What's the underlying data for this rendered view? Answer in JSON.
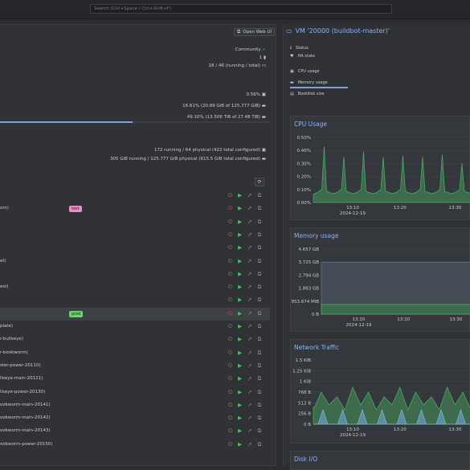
{
  "search": {
    "placeholder": "Search (Ctrl+Space / Ctrl+Shift+F)"
  },
  "left": {
    "open_web_ui": "Open Web UI",
    "subscription": "Community",
    "nodes": "1",
    "guests": "18 / 46 (running / total)",
    "cpu": "0.56%",
    "memory": "16.61% (20.89 GiB of 125.777 GiB)",
    "storage": "49.10% (13.506 TiB of 27.48 TiB)",
    "cpu_alloc": "172 running / 64 physical (422 total configured)",
    "mem_alloc": "305 GiB running / 125.777 GiB physical (615.5 GiB total configured)",
    "storage_pct": 0.491,
    "rows": [
      {
        "name": "",
        "tag": "",
        "status": "stopped"
      },
      {
        "name": "om)",
        "tag": "test",
        "status": "red"
      },
      {
        "name": "",
        "tag": "",
        "status": "stopped"
      },
      {
        "name": "",
        "tag": "",
        "status": "stopped"
      },
      {
        "name": "",
        "tag": "",
        "status": "stopped"
      },
      {
        "name": "et)",
        "tag": "",
        "status": "stopped"
      },
      {
        "name": "",
        "tag": "",
        "status": "stopped"
      },
      {
        "name": "est)",
        "tag": "",
        "status": "stopped"
      },
      {
        "name": "",
        "tag": "",
        "status": "stopped"
      },
      {
        "name": "",
        "tag": "prod",
        "status": "red"
      },
      {
        "name": "plate)",
        "tag": "",
        "status": "stopped"
      },
      {
        "name": "r-bullseye)",
        "tag": "",
        "status": "stopped"
      },
      {
        "name": "r-bookworm)",
        "tag": "",
        "status": "stopped"
      },
      {
        "name": "ster-power-20110)",
        "tag": "",
        "status": "stopped"
      },
      {
        "name": "llseye-main-20121)",
        "tag": "",
        "status": "stopped"
      },
      {
        "name": "llseye-power-20130)",
        "tag": "",
        "status": "stopped"
      },
      {
        "name": "ookworm-main-20141)",
        "tag": "",
        "status": "stopped"
      },
      {
        "name": "ookworm-main-20142)",
        "tag": "",
        "status": "stopped"
      },
      {
        "name": "ookworm-main-20143)",
        "tag": "",
        "status": "stopped"
      },
      {
        "name": "ookworm-power-20150)",
        "tag": "",
        "status": "stopped"
      }
    ]
  },
  "right": {
    "vm_title": "VM '20000 (buildbot-master)'",
    "info": [
      "Status",
      "HA state",
      "CPU usage",
      "Memory usage",
      "Bootdisk size"
    ],
    "cpu_card": {
      "title": "CPU Usage",
      "yticks": [
        "0.50%",
        "0.40%",
        "0.30%",
        "0.20%",
        "0.10%",
        "0.00%"
      ],
      "xticks": [
        "13:10",
        "13:20",
        "13:30"
      ],
      "date": "2024-12-19"
    },
    "mem_card": {
      "title": "Memory usage",
      "yticks": [
        "4.657 GB",
        "3.725 GB",
        "2.794 GB",
        "1.863 GB",
        "953.674 MiB",
        "0 B"
      ],
      "xticks": [
        "13:10",
        "13:20",
        "13:30"
      ],
      "date": "2024-12-19"
    },
    "net_card": {
      "title": "Network Traffic",
      "yticks": [
        "1.5 KiB",
        "1.25 KiB",
        "1 KiB",
        "768 B",
        "512 B",
        "256 B",
        "0 B"
      ],
      "xticks": [
        "13:10",
        "13:20",
        "13:30"
      ],
      "date": "2024-12-19"
    },
    "disk_card": {
      "title": "Disk I/O"
    }
  }
}
